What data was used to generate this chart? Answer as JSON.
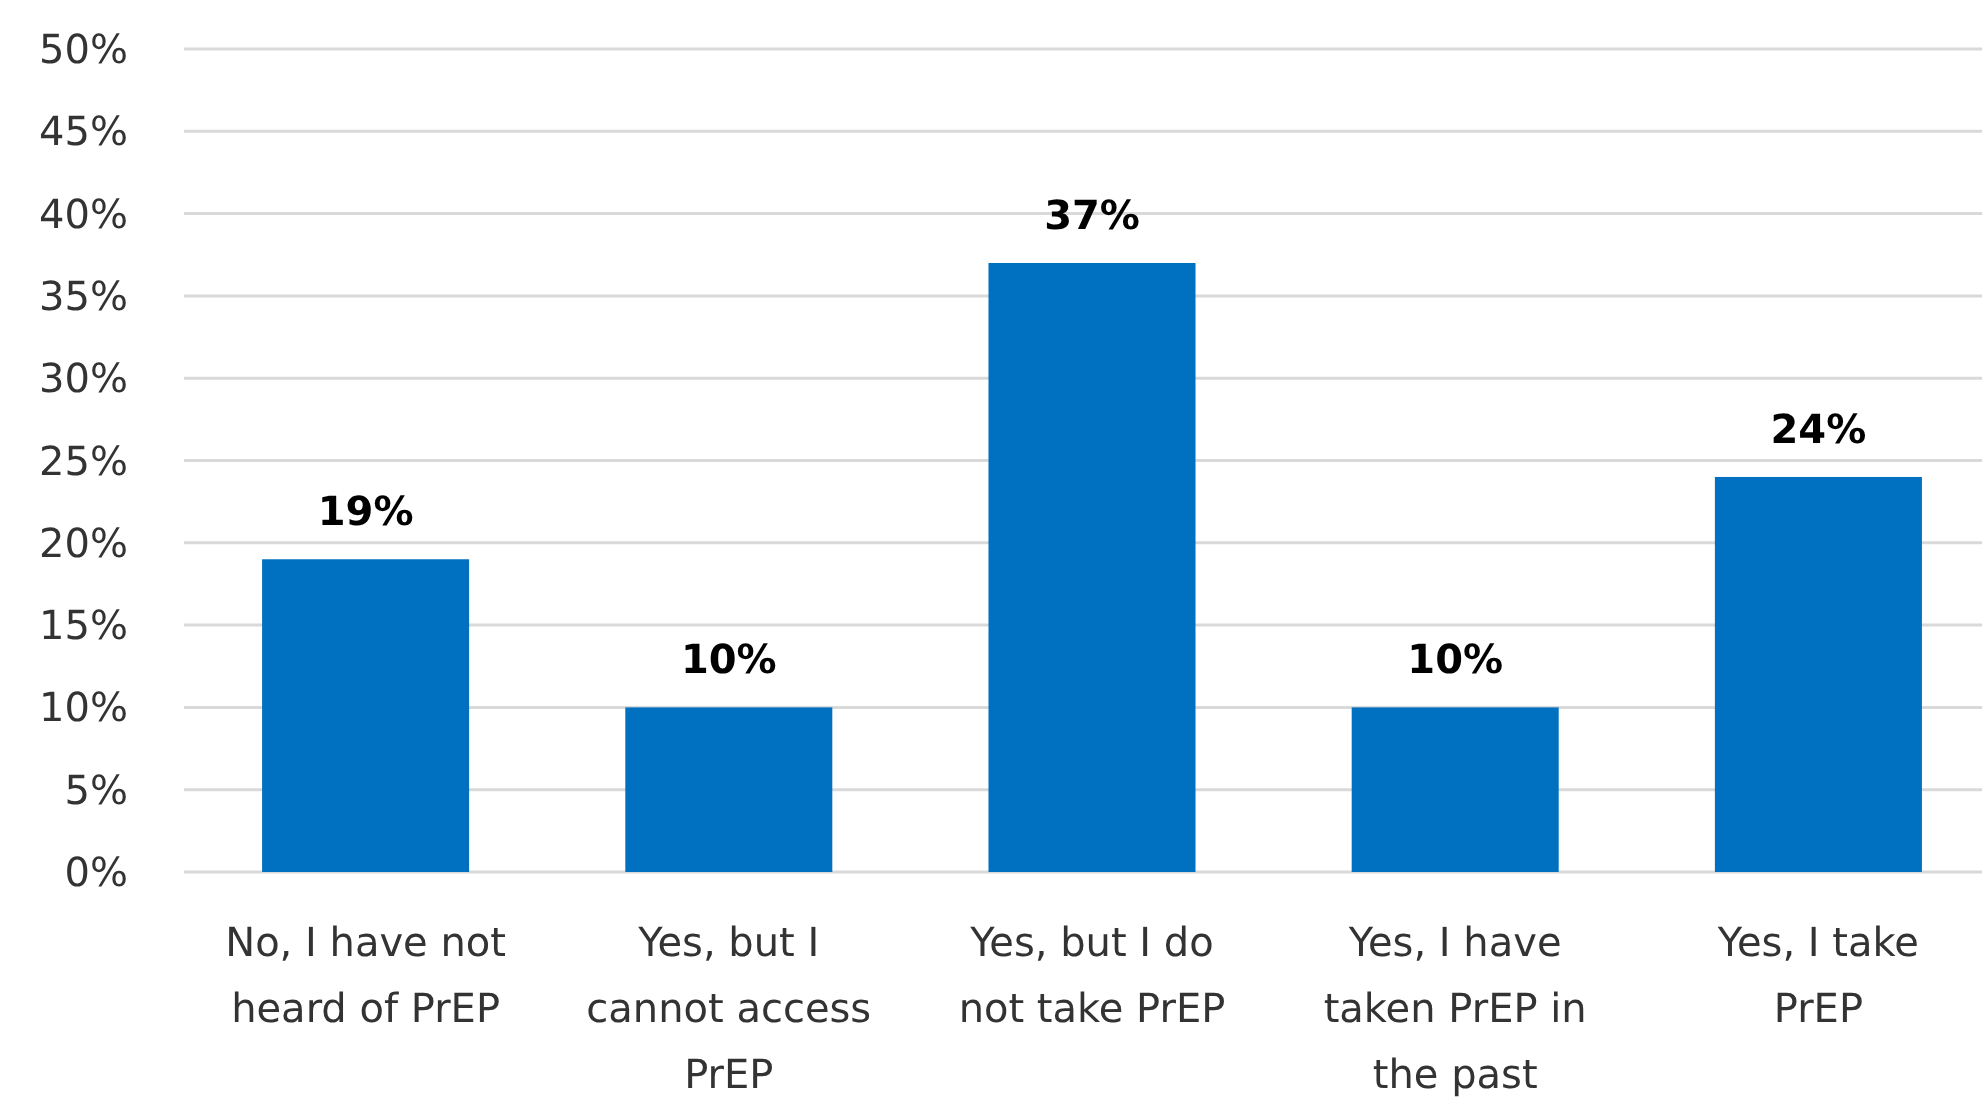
{
  "chart_data": {
    "type": "bar",
    "categories": [
      "No, I have not heard of PrEP",
      "Yes, but I cannot access PrEP",
      "Yes, but I do not take PrEP",
      "Yes, I have taken PrEP in the past",
      "Yes, I take PrEP"
    ],
    "values": [
      19,
      10,
      37,
      10,
      24
    ],
    "color": "#0070c0",
    "value_labels": [
      "19%",
      "10%",
      "37%",
      "10%",
      "24%"
    ],
    "ylim": [
      0,
      50
    ],
    "yticks": [
      {
        "value": 0,
        "label": "0%"
      },
      {
        "value": 5,
        "label": "5%"
      },
      {
        "value": 10,
        "label": "10%"
      },
      {
        "value": 15,
        "label": "15%"
      },
      {
        "value": 20,
        "label": "20%"
      },
      {
        "value": 25,
        "label": "25%"
      },
      {
        "value": 30,
        "label": "30%"
      },
      {
        "value": 35,
        "label": "35%"
      },
      {
        "value": 40,
        "label": "40%"
      },
      {
        "value": 45,
        "label": "45%"
      },
      {
        "value": 50,
        "label": "50%"
      }
    ],
    "grid": "y"
  }
}
